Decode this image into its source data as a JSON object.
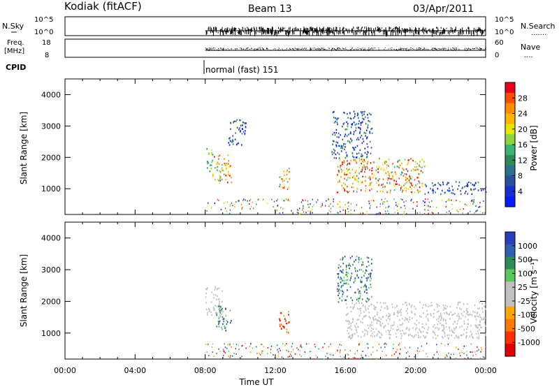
{
  "header": {
    "station": "Kodiak (fitACF)",
    "beam": "Beam 13",
    "date": "03/Apr/2011"
  },
  "status": {
    "nsky_label": "N.Sky",
    "nsearch_label": "N.Search",
    "left_ticks": [
      "10^5",
      "10^0"
    ],
    "right_ticks": [
      "10^5",
      "10^0"
    ],
    "freq_label": "Freq.",
    "freq_unit": "[MHz]",
    "freq_ticks": [
      "18",
      "8"
    ],
    "nave_label": "Nave",
    "nave_ticks": [
      "60",
      "0"
    ],
    "cpid_label": "CPID",
    "cpid_value": "normal (fast) 151"
  },
  "chart_data": [
    {
      "type": "heatmap",
      "ylabel": "Slant Range [km]",
      "ylim": [
        180,
        4500
      ],
      "xlim": [
        0,
        24
      ],
      "y_ticks": [
        "4000",
        "3000",
        "2000",
        "1000"
      ],
      "colorbar": {
        "label": "Power [dB]",
        "ticks": [
          "28",
          "24",
          "20",
          "16",
          "12",
          "8",
          "4"
        ],
        "colors": [
          "#e8001a",
          "#ff4d00",
          "#ff8c00",
          "#ffb400",
          "#e6e600",
          "#8fd13f",
          "#3cb371",
          "#2e8b57",
          "#2f6f8f",
          "#2a4fa0",
          "#1a2fd0",
          "#0a1aff"
        ]
      },
      "scatter_regions": [
        {
          "t0": 8.0,
          "t1": 8.4,
          "r0": 1500,
          "r1": 2400,
          "level": "mid"
        },
        {
          "t0": 8.4,
          "t1": 9.5,
          "r0": 1200,
          "r1": 2100,
          "level": "high"
        },
        {
          "t0": 9.3,
          "t1": 10.3,
          "r0": 2400,
          "r1": 3300,
          "level": "low"
        },
        {
          "t0": 12.2,
          "t1": 12.8,
          "r0": 1000,
          "r1": 1700,
          "level": "high"
        },
        {
          "t0": 15.5,
          "t1": 20.5,
          "r0": 900,
          "r1": 2000,
          "level": "high"
        },
        {
          "t0": 20.5,
          "t1": 24.0,
          "r0": 850,
          "r1": 1250,
          "level": "low"
        },
        {
          "t0": 15.2,
          "t1": 17.5,
          "r0": 2000,
          "r1": 3500,
          "level": "low"
        }
      ]
    },
    {
      "type": "heatmap",
      "ylabel": "Slant Range [km]",
      "xlabel": "Time UT",
      "ylim": [
        180,
        4500
      ],
      "xlim": [
        0,
        24
      ],
      "y_ticks": [
        "4000",
        "3000",
        "2000",
        "1000"
      ],
      "x_ticks": [
        "00:00",
        "04:00",
        "08:00",
        "12:00",
        "16:00",
        "20:00",
        "00:00"
      ],
      "colorbar": {
        "label": "Velocity [m s⁻¹]",
        "ticks": [
          "1000",
          "500",
          "100",
          "25",
          "-25",
          "-100",
          "-500",
          "-1000"
        ],
        "colors": [
          "#2a3fc0",
          "#2f5fb0",
          "#2e8b57",
          "#5cc85c",
          "#c0c0c0",
          "#c0c0c0",
          "#ffa500",
          "#ff7800",
          "#ff3000",
          "#e00000"
        ]
      },
      "scatter_regions": [
        {
          "t0": 8.0,
          "t1": 9.0,
          "r0": 1500,
          "r1": 2500,
          "level": "ground"
        },
        {
          "t0": 8.6,
          "t1": 9.5,
          "r0": 1100,
          "r1": 1900,
          "level": "pos"
        },
        {
          "t0": 12.2,
          "t1": 12.8,
          "r0": 1000,
          "r1": 1700,
          "level": "neg"
        },
        {
          "t0": 16.0,
          "t1": 24.0,
          "r0": 850,
          "r1": 2000,
          "level": "ground"
        },
        {
          "t0": 15.5,
          "t1": 17.5,
          "r0": 2000,
          "r1": 3500,
          "level": "pos"
        }
      ]
    }
  ]
}
